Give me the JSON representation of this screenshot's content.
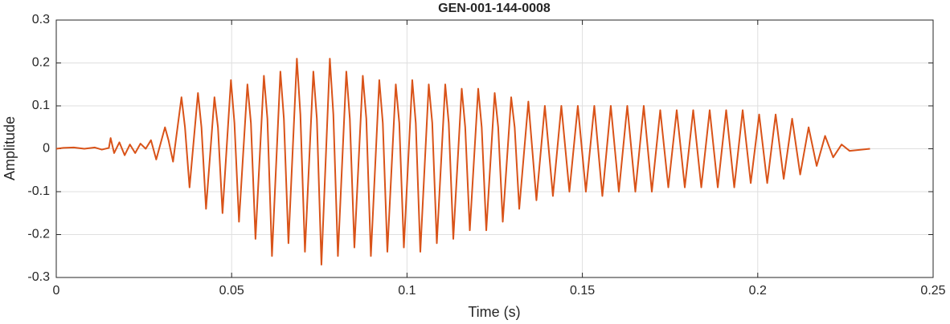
{
  "chart_data": {
    "type": "line",
    "title": "GEN-001-144-0008",
    "xlabel": "Time (s)",
    "ylabel": "Amplitude",
    "xlim": [
      0,
      0.25
    ],
    "xticks": [
      0,
      0.05,
      0.1,
      0.15,
      0.2,
      0.25
    ],
    "ylim": [
      -0.3,
      0.3
    ],
    "yticks": [
      -0.3,
      -0.2,
      -0.1,
      0,
      0.1,
      0.2,
      0.3
    ],
    "grid": true,
    "series": [
      {
        "color": "#D95319",
        "x": [
          0,
          0.002,
          0.005,
          0.008,
          0.011,
          0.013,
          0.015,
          0.0155,
          0.0165,
          0.018,
          0.0195,
          0.021,
          0.0225,
          0.024,
          0.0255,
          0.027,
          0.0285,
          0.031,
          0.032,
          0.0333,
          0.0357,
          0.0367,
          0.038,
          0.0404,
          0.0414,
          0.0427,
          0.0451,
          0.0461,
          0.0474,
          0.0498,
          0.0508,
          0.0521,
          0.0545,
          0.0555,
          0.0568,
          0.0592,
          0.0602,
          0.0615,
          0.0639,
          0.0649,
          0.0662,
          0.0686,
          0.0696,
          0.0709,
          0.0733,
          0.0743,
          0.0756,
          0.078,
          0.079,
          0.0803,
          0.0827,
          0.0837,
          0.085,
          0.0874,
          0.0884,
          0.0897,
          0.0921,
          0.0931,
          0.0944,
          0.0968,
          0.0978,
          0.0991,
          0.1015,
          0.1025,
          0.1038,
          0.1062,
          0.1072,
          0.1085,
          0.1109,
          0.1119,
          0.1132,
          0.1156,
          0.1166,
          0.1179,
          0.1203,
          0.1213,
          0.1226,
          0.125,
          0.126,
          0.1273,
          0.1297,
          0.1307,
          0.132,
          0.1346,
          0.1369,
          0.1393,
          0.1416,
          0.144,
          0.1463,
          0.1487,
          0.151,
          0.1534,
          0.1557,
          0.1581,
          0.1604,
          0.1628,
          0.1651,
          0.1675,
          0.1698,
          0.1722,
          0.1745,
          0.1769,
          0.1792,
          0.1816,
          0.1839,
          0.1863,
          0.1886,
          0.191,
          0.1933,
          0.1957,
          0.198,
          0.2004,
          0.2027,
          0.2051,
          0.2074,
          0.2098,
          0.2121,
          0.2145,
          0.2168,
          0.2192,
          0.2215,
          0.2239,
          0.2262,
          0.232
        ],
        "values": [
          0,
          0.002,
          0.003,
          0.0,
          0.003,
          -0.002,
          0.002,
          0.025,
          -0.01,
          0.015,
          -0.015,
          0.01,
          -0.01,
          0.012,
          0.0,
          0.02,
          -0.025,
          0.05,
          0.02,
          -0.03,
          0.12,
          0.05,
          -0.09,
          0.13,
          0.05,
          -0.14,
          0.12,
          0.05,
          -0.15,
          0.16,
          0.06,
          -0.17,
          0.15,
          0.06,
          -0.21,
          0.17,
          0.07,
          -0.25,
          0.18,
          0.07,
          -0.22,
          0.21,
          0.08,
          -0.24,
          0.18,
          0.07,
          -0.27,
          0.21,
          0.08,
          -0.25,
          0.18,
          0.07,
          -0.23,
          0.17,
          0.07,
          -0.25,
          0.16,
          0.06,
          -0.24,
          0.15,
          0.06,
          -0.23,
          0.16,
          0.06,
          -0.24,
          0.15,
          0.06,
          -0.22,
          0.15,
          0.06,
          -0.21,
          0.14,
          0.05,
          -0.19,
          0.14,
          0.05,
          -0.19,
          0.13,
          0.05,
          -0.17,
          0.12,
          0.05,
          -0.14,
          0.11,
          -0.12,
          0.1,
          -0.11,
          0.1,
          -0.1,
          0.1,
          -0.1,
          0.1,
          -0.11,
          0.1,
          -0.1,
          0.1,
          -0.1,
          0.1,
          -0.1,
          0.09,
          -0.09,
          0.09,
          -0.09,
          0.09,
          -0.09,
          0.09,
          -0.09,
          0.09,
          -0.09,
          0.09,
          -0.08,
          0.08,
          -0.08,
          0.08,
          -0.07,
          0.07,
          -0.06,
          0.05,
          -0.04,
          0.03,
          -0.02,
          0.01,
          -0.005,
          0
        ]
      }
    ]
  }
}
